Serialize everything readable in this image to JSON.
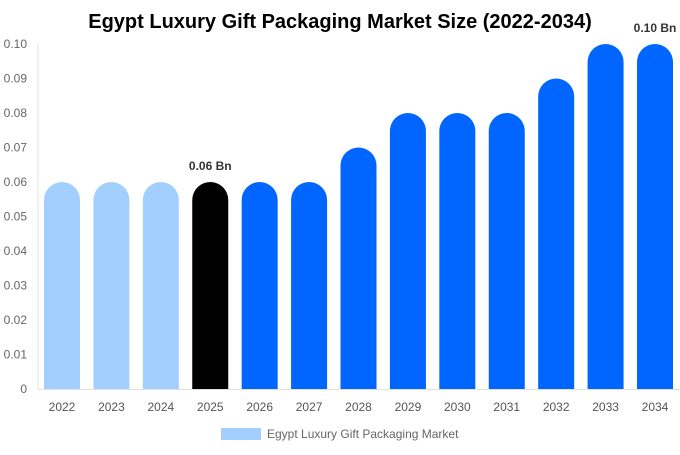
{
  "chart_data": {
    "type": "bar",
    "title": "Egypt Luxury Gift Packaging Market Size (2022-2034)",
    "categories": [
      "2022",
      "2023",
      "2024",
      "2025",
      "2026",
      "2027",
      "2028",
      "2029",
      "2030",
      "2031",
      "2032",
      "2033",
      "2034"
    ],
    "series": [
      {
        "name": "Egypt Luxury Gift Packaging Market",
        "values": [
          0.06,
          0.06,
          0.06,
          0.06,
          0.06,
          0.06,
          0.07,
          0.08,
          0.08,
          0.08,
          0.09,
          0.1,
          0.1
        ]
      }
    ],
    "bar_colors": [
      "#a3cfff",
      "#a3cfff",
      "#a3cfff",
      "#000000",
      "#0066ff",
      "#0066ff",
      "#0066ff",
      "#0066ff",
      "#0066ff",
      "#0066ff",
      "#0066ff",
      "#0066ff",
      "#0066ff"
    ],
    "data_labels": [
      {
        "index": 3,
        "text": "0.06 Bn"
      },
      {
        "index": 12,
        "text": "0.10 Bn"
      }
    ],
    "ylim": [
      0,
      0.1
    ],
    "yticks": [
      "0",
      "0.01",
      "0.02",
      "0.03",
      "0.04",
      "0.05",
      "0.06",
      "0.07",
      "0.08",
      "0.09",
      "0.10"
    ],
    "xlabel": "",
    "ylabel": "",
    "grid": false,
    "legend": "bottom",
    "legend_color": "#a3cfff"
  }
}
